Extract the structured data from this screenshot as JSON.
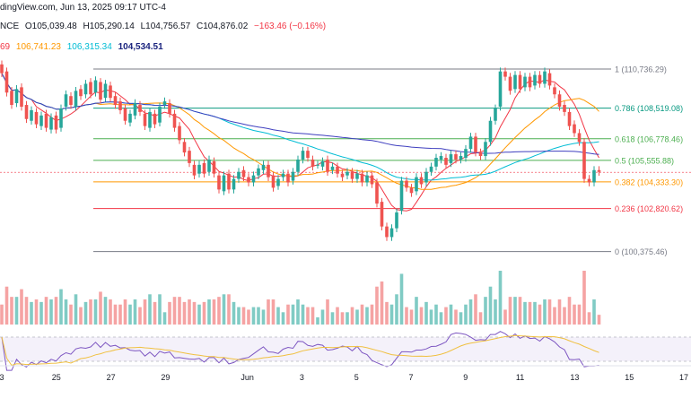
{
  "header": {
    "line1": "dingView.com, Jun 13, 2025 09:17 UTC-4",
    "symbol_suffix": "NCE",
    "ohlc": {
      "open": "O105,039.48",
      "high": "H105,290.14",
      "low": "L104,756.57",
      "close": "C104,876.02",
      "change": "−163.46 (−0.16%)"
    },
    "ma_values": [
      {
        "text": "69",
        "color": "#f23645"
      },
      {
        "text": "106,741.23",
        "color": "#ff9800"
      },
      {
        "text": "106,315.34",
        "color": "#00bcd4"
      },
      {
        "text": "104,534.51",
        "color": "#1a237e"
      }
    ]
  },
  "chart_data": {
    "type": "candlestick",
    "price_range": [
      99900,
      111500
    ],
    "fibonacci_levels": [
      {
        "label": "1 (110,736.29)",
        "price": 110736.29,
        "color": "#787b86"
      },
      {
        "label": "0.786 (108,519.08)",
        "price": 108519.08,
        "color": "#089981"
      },
      {
        "label": "0.618 (106,778.46)",
        "price": 106778.46,
        "color": "#4caf50"
      },
      {
        "label": "0.5 (105,555.88)",
        "price": 105555.88,
        "color": "#4caf50"
      },
      {
        "label": "0.382 (104,333.30)",
        "price": 104333.3,
        "color": "#ff9800"
      },
      {
        "label": "0.236 (102,820.62)",
        "price": 102820.62,
        "color": "#f23645"
      },
      {
        "label": "0 (100,375.46)",
        "price": 100375.46,
        "color": "#787b86"
      }
    ],
    "x_ticks": [
      {
        "label": "3",
        "day": 0
      },
      {
        "label": "25",
        "day": 2
      },
      {
        "label": "27",
        "day": 4
      },
      {
        "label": "29",
        "day": 6
      },
      {
        "label": "Jun",
        "day": 9
      },
      {
        "label": "3",
        "day": 11
      },
      {
        "label": "5",
        "day": 13
      },
      {
        "label": "7",
        "day": 15
      },
      {
        "label": "9",
        "day": 17
      },
      {
        "label": "11",
        "day": 19
      },
      {
        "label": "13",
        "day": 21
      },
      {
        "label": "15",
        "day": 23
      },
      {
        "label": "17",
        "day": 25
      }
    ],
    "candles": [
      [
        111000,
        110500
      ],
      [
        110600,
        109400
      ],
      [
        109500,
        108700
      ],
      [
        108800,
        109600
      ],
      [
        109700,
        108600
      ],
      [
        108700,
        107900
      ],
      [
        107800,
        108400
      ],
      [
        108300,
        107600
      ],
      [
        107500,
        108100
      ],
      [
        108200,
        107400
      ],
      [
        107300,
        108000
      ],
      [
        108100,
        107300
      ],
      [
        107400,
        108500
      ],
      [
        108600,
        109300
      ],
      [
        109200,
        108700
      ],
      [
        108600,
        109500
      ],
      [
        109600,
        109200
      ],
      [
        109300,
        109900
      ],
      [
        110000,
        109300
      ],
      [
        109400,
        110100
      ],
      [
        110000,
        109000
      ],
      [
        109100,
        109900
      ],
      [
        109800,
        109100
      ],
      [
        109200,
        108700
      ],
      [
        108900,
        108400
      ],
      [
        108500,
        107800
      ],
      [
        107700,
        108200
      ],
      [
        108100,
        108800
      ],
      [
        108700,
        108300
      ],
      [
        108200,
        107500
      ],
      [
        107400,
        108300
      ],
      [
        108200,
        107600
      ],
      [
        107700,
        108600
      ],
      [
        108700,
        108900
      ],
      [
        108800,
        108200
      ],
      [
        108200,
        107400
      ],
      [
        107500,
        106700
      ],
      [
        106600,
        106000
      ],
      [
        106100,
        105400
      ],
      [
        105300,
        104700
      ],
      [
        104800,
        105300
      ],
      [
        105400,
        104800
      ],
      [
        104900,
        105600
      ],
      [
        105500,
        104800
      ],
      [
        104700,
        103900
      ],
      [
        103800,
        104700
      ],
      [
        104800,
        103900
      ],
      [
        103900,
        104500
      ],
      [
        104500,
        104900
      ],
      [
        105000,
        104600
      ],
      [
        104600,
        104300
      ],
      [
        104300,
        104700
      ],
      [
        104700,
        105100
      ],
      [
        105000,
        105300
      ],
      [
        105300,
        104600
      ],
      [
        104700,
        104000
      ],
      [
        104100,
        104500
      ],
      [
        104600,
        104800
      ],
      [
        104800,
        104300
      ],
      [
        104400,
        104900
      ],
      [
        104900,
        105600
      ],
      [
        105600,
        106100
      ],
      [
        106100,
        105700
      ],
      [
        105600,
        105200
      ],
      [
        105300,
        105300
      ],
      [
        105200,
        105500
      ],
      [
        105600,
        104900
      ],
      [
        105000,
        105200
      ],
      [
        105200,
        104800
      ],
      [
        104800,
        104600
      ],
      [
        104700,
        104900
      ],
      [
        104900,
        104500
      ],
      [
        104500,
        104800
      ],
      [
        104800,
        104300
      ],
      [
        104300,
        104700
      ],
      [
        104700,
        104200
      ],
      [
        104300,
        103100
      ],
      [
        103200,
        101800
      ],
      [
        101800,
        101200
      ],
      [
        101200,
        101700
      ],
      [
        101700,
        102600
      ],
      [
        102700,
        104400
      ],
      [
        104400,
        104000
      ],
      [
        104000,
        103700
      ],
      [
        103800,
        104600
      ],
      [
        104600,
        104200
      ],
      [
        104300,
        104900
      ],
      [
        104900,
        105200
      ],
      [
        105200,
        105700
      ],
      [
        105600,
        105800
      ],
      [
        105700,
        105300
      ],
      [
        105400,
        105900
      ],
      [
        105900,
        105600
      ],
      [
        105600,
        105800
      ],
      [
        105700,
        106200
      ],
      [
        106200,
        106900
      ],
      [
        106900,
        106000
      ],
      [
        106000,
        105800
      ],
      [
        105800,
        106600
      ],
      [
        106600,
        107800
      ],
      [
        107800,
        108500
      ],
      [
        108600,
        110600
      ],
      [
        110600,
        110300
      ],
      [
        110300,
        109500
      ],
      [
        109600,
        110400
      ],
      [
        110400,
        109600
      ],
      [
        109700,
        110300
      ],
      [
        110300,
        109700
      ],
      [
        109800,
        110400
      ],
      [
        110400,
        109900
      ],
      [
        109900,
        110600
      ],
      [
        110500,
        109800
      ],
      [
        109700,
        109300
      ],
      [
        109300,
        108600
      ],
      [
        108700,
        108300
      ],
      [
        108300,
        107500
      ],
      [
        107600,
        107100
      ],
      [
        107100,
        106600
      ],
      [
        106600,
        104500
      ],
      [
        104500,
        104300
      ],
      [
        104300,
        105000
      ],
      [
        105000,
        104900
      ]
    ],
    "notes": "Candles given as [open, close] in USD; volume bars below and RSI panel at bottom."
  }
}
